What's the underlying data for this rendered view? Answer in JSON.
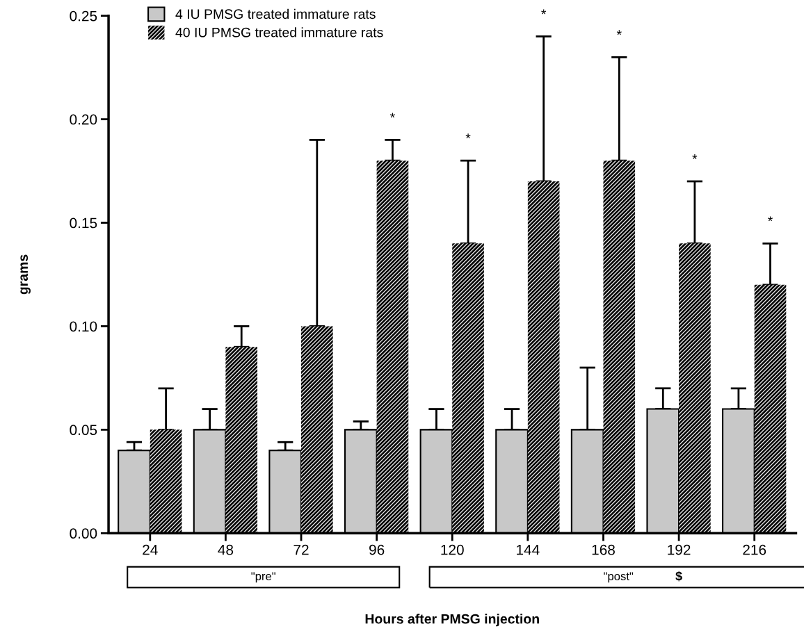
{
  "chart_data": {
    "type": "bar",
    "xlabel": "Hours after PMSG injection",
    "ylabel": "grams",
    "categories": [
      "24",
      "48",
      "72",
      "96",
      "120",
      "144",
      "168",
      "192",
      "216"
    ],
    "series": [
      {
        "name": "4 IU PMSG treated immature rats",
        "color": "#c8c8c8",
        "values": [
          0.04,
          0.05,
          0.04,
          0.05,
          0.05,
          0.05,
          0.05,
          0.06,
          0.06
        ],
        "errors": [
          [
            0.04,
            0.044
          ],
          [
            0.05,
            0.06
          ],
          [
            0.04,
            0.044
          ],
          [
            0.05,
            0.054
          ],
          [
            0.05,
            0.06
          ],
          [
            0.05,
            0.06
          ],
          [
            0.05,
            0.08
          ],
          [
            0.06,
            0.07
          ],
          [
            0.06,
            0.07
          ]
        ]
      },
      {
        "name": "40 IU PMSG treated immature rats",
        "color": "#000000",
        "values": [
          0.05,
          0.09,
          0.1,
          0.18,
          0.14,
          0.17,
          0.18,
          0.14,
          0.12
        ],
        "errors": [
          [
            0.05,
            0.07
          ],
          [
            0.09,
            0.1
          ],
          [
            0.1,
            0.19
          ],
          [
            0.18,
            0.19
          ],
          [
            0.14,
            0.18
          ],
          [
            0.17,
            0.24
          ],
          [
            0.18,
            0.23
          ],
          [
            0.14,
            0.17
          ],
          [
            0.12,
            0.14
          ]
        ]
      }
    ],
    "ylim": [
      0,
      0.25
    ],
    "yticks": [
      {
        "value": 0,
        "label": "0.00"
      },
      {
        "value": 0.05,
        "label": "0.05"
      },
      {
        "value": 0.1,
        "label": "0.10"
      },
      {
        "value": 0.15,
        "label": "0.15"
      },
      {
        "value": 0.2,
        "label": "0.20"
      },
      {
        "value": 0.25,
        "label": "0.25"
      }
    ],
    "legend": "top left",
    "annotations": [
      "*",
      "*",
      "*",
      "*",
      "*",
      "*",
      "\"pre\"",
      "\"post\"",
      "$"
    ]
  }
}
